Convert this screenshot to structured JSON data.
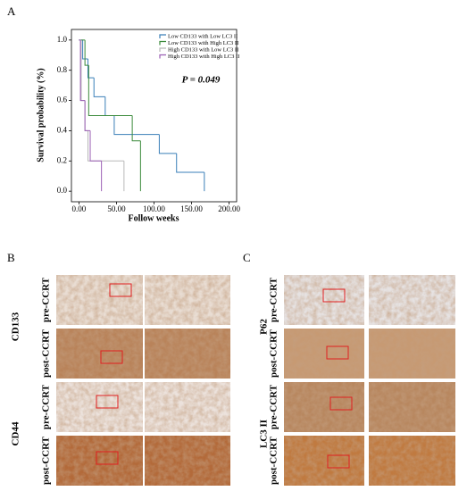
{
  "panel_labels": [
    "A",
    "B",
    "C"
  ],
  "chart_data": {
    "type": "step",
    "ylabel": "Survival probability (%)",
    "xlabel": "Follow weeks",
    "annotation": "P = 0.049",
    "xlim": [
      -10,
      210
    ],
    "ylim": [
      -0.07,
      1.07
    ],
    "xticks": [
      {
        "value": 0,
        "label": "0.00"
      },
      {
        "value": 50,
        "label": "50.00"
      },
      {
        "value": 100,
        "label": "100.00"
      },
      {
        "value": 150,
        "label": "150.00"
      },
      {
        "value": 200,
        "label": "200.00"
      }
    ],
    "yticks": [
      {
        "value": 0,
        "label": "0.0"
      },
      0.2,
      0.4,
      0.6,
      0.8,
      {
        "value": 1,
        "label": "1.0"
      }
    ],
    "legend": "top-right",
    "series": [
      {
        "name": "Low CD133 with Low LC3 II",
        "color": "#3a7fb8",
        "x": [
          0,
          5,
          12,
          20,
          35,
          47,
          107,
          130,
          167
        ],
        "values": [
          1,
          0.875,
          0.75,
          0.625,
          0.5,
          0.375,
          0.25,
          0.125,
          0
        ]
      },
      {
        "name": "Low CD133 with High LC3 II",
        "color": "#3a8a3a",
        "x": [
          0,
          8,
          13,
          71,
          82
        ],
        "values": [
          1,
          0.833,
          0.5,
          0.333,
          0
        ]
      },
      {
        "name": "High CD133 with Low LC3 II",
        "color": "#b8b8b8",
        "x": [
          0,
          3,
          8,
          12,
          60
        ],
        "values": [
          1,
          0.6,
          0.4,
          0.2,
          0
        ]
      },
      {
        "name": "High CD133 with High LC3 II",
        "color": "#9b5fb5",
        "x": [
          0,
          2,
          8,
          15,
          30
        ],
        "values": [
          1,
          0.6,
          0.4,
          0.2,
          0
        ]
      }
    ]
  },
  "panel_b": {
    "markers": [
      {
        "name": "CD133",
        "rows": [
          "pre-CCRT",
          "post-CCRT"
        ]
      },
      {
        "name": "CD44",
        "rows": [
          "pre-CCRT",
          "post-CCRT"
        ]
      }
    ]
  },
  "panel_c": {
    "markers": [
      {
        "name": "P62",
        "rows": [
          "pre-CCRT",
          "post-CCRT"
        ]
      },
      {
        "name": "LC3 II",
        "rows": [
          "pre-CCRT",
          "post-CCRT"
        ]
      }
    ]
  }
}
